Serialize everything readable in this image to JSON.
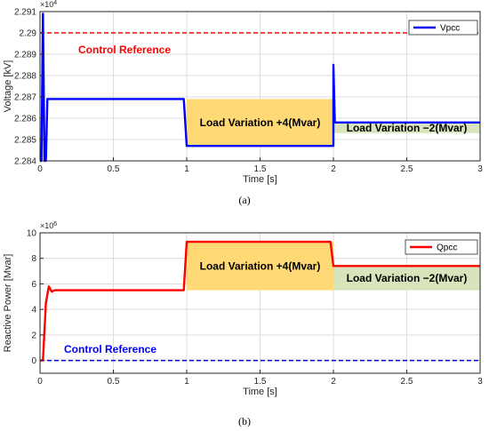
{
  "chart_data": [
    {
      "type": "line",
      "caption": "(a)",
      "xlabel": "Time [s]",
      "ylabel": "Voltage [kV]",
      "y_multiplier": "×10",
      "y_multiplier_exp": "4",
      "xlim": [
        0,
        3
      ],
      "ylim": [
        2.284,
        2.291
      ],
      "x_ticks": [
        "0",
        "0.5",
        "1",
        "1.5",
        "2",
        "2.5",
        "3"
      ],
      "x_tick_values": [
        0,
        0.5,
        1,
        1.5,
        2,
        2.5,
        3
      ],
      "y_ticks": [
        "2.284",
        "2.285",
        "2.286",
        "2.287",
        "2.288",
        "2.289",
        "2.29",
        "2.291"
      ],
      "y_tick_values": [
        2.284,
        2.285,
        2.286,
        2.287,
        2.288,
        2.289,
        2.29,
        2.291
      ],
      "grid": true,
      "legend_position": "top-right",
      "series": [
        {
          "name": "Vpcc",
          "color": "#0000ff",
          "points": [
            [
              0,
              2.284
            ],
            [
              0.01,
              2.284
            ],
            [
              0.02,
              2.2909
            ],
            [
              0.03,
              2.284
            ],
            [
              0.04,
              2.284
            ],
            [
              0.05,
              2.2869
            ],
            [
              0.07,
              2.2869
            ],
            [
              0.1,
              2.2869
            ],
            [
              0.98,
              2.2869
            ],
            [
              1.0,
              2.2847
            ],
            [
              1.98,
              2.2847
            ],
            [
              2.0,
              2.2847
            ],
            [
              2.0,
              2.2885
            ],
            [
              2.01,
              2.2858
            ],
            [
              2.04,
              2.2858
            ],
            [
              3,
              2.2858
            ]
          ]
        }
      ],
      "reference": {
        "label": "Control Reference",
        "value": 2.29,
        "color": "#ff0000"
      },
      "regions": [
        {
          "label": "Load Variation +4(Mvar)",
          "x0": 1,
          "x1": 2,
          "y0": 2.2847,
          "y1": 2.2869,
          "color": "#ffd976"
        },
        {
          "label": "Load Variation −2(Mvar)",
          "x0": 2,
          "x1": 3,
          "y0": 2.2853,
          "y1": 2.2858,
          "color": "#d8e4bc"
        }
      ]
    },
    {
      "type": "line",
      "caption": "(b)",
      "xlabel": "Time [s]",
      "ylabel": "Reactive Power [Mvar]",
      "y_multiplier": "×10",
      "y_multiplier_exp": "6",
      "xlim": [
        0,
        3
      ],
      "ylim": [
        -1,
        10
      ],
      "x_ticks": [
        "0",
        "0.5",
        "1",
        "1.5",
        "2",
        "2.5",
        "3"
      ],
      "x_tick_values": [
        0,
        0.5,
        1,
        1.5,
        2,
        2.5,
        3
      ],
      "y_ticks": [
        "0",
        "2",
        "4",
        "6",
        "8",
        "10"
      ],
      "y_tick_values": [
        0,
        2,
        4,
        6,
        8,
        10
      ],
      "grid": true,
      "legend_position": "top-right",
      "series": [
        {
          "name": "Qpcc",
          "color": "#ff0000",
          "points": [
            [
              0,
              0
            ],
            [
              0.02,
              0
            ],
            [
              0.04,
              4.5
            ],
            [
              0.06,
              5.8
            ],
            [
              0.08,
              5.4
            ],
            [
              0.1,
              5.5
            ],
            [
              0.98,
              5.5
            ],
            [
              1.0,
              9.3
            ],
            [
              1.98,
              9.3
            ],
            [
              2.0,
              7.4
            ],
            [
              3,
              7.4
            ]
          ]
        }
      ],
      "reference": {
        "label": "Control Reference",
        "value": 0,
        "color": "#0000ff"
      },
      "regions": [
        {
          "label": "Load Variation +4(Mvar)",
          "x0": 1,
          "x1": 2,
          "y0": 5.5,
          "y1": 9.3,
          "color": "#ffd976"
        },
        {
          "label": "Load Variation −2(Mvar)",
          "x0": 2,
          "x1": 3,
          "y0": 5.5,
          "y1": 7.4,
          "color": "#d8e4bc"
        }
      ]
    }
  ]
}
